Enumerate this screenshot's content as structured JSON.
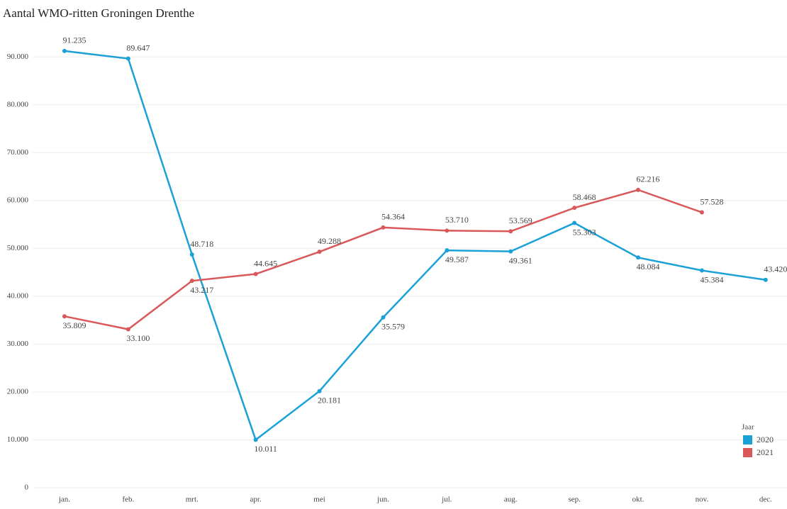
{
  "chart_data": {
    "type": "line",
    "title": "Aantal WMO-ritten Groningen Drenthe",
    "categories": [
      "jan.",
      "feb.",
      "mrt.",
      "apr.",
      "mei",
      "jun.",
      "jul.",
      "aug.",
      "sep.",
      "okt.",
      "nov.",
      "dec."
    ],
    "series": [
      {
        "name": "2020",
        "color": "#1ba1d8",
        "values": [
          91235,
          89647,
          48718,
          10011,
          20181,
          35579,
          49587,
          49361,
          55303,
          48084,
          45384,
          43420
        ],
        "value_labels": [
          "91.235",
          "89.647",
          "48.718",
          "10.011",
          "20.181",
          "35.579",
          "49.587",
          "49.361",
          "55.303",
          "48.084",
          "45.384",
          "43.420"
        ]
      },
      {
        "name": "2021",
        "color": "#d9585a",
        "values": [
          35809,
          33100,
          43217,
          44645,
          49288,
          54364,
          53710,
          53569,
          58468,
          62216,
          57528,
          null
        ],
        "value_labels": [
          "35.809",
          "33.100",
          "43.217",
          "44.645",
          "49.288",
          "54.364",
          "53.710",
          "53.569",
          "58.468",
          "62.216",
          "57.528",
          null
        ]
      }
    ],
    "ylim": [
      0,
      93000
    ],
    "yticks": [
      0,
      {
        "value": 10000,
        "label": "10.000"
      },
      {
        "value": 20000,
        "label": "20.000"
      },
      {
        "value": 30000,
        "label": "30.000"
      },
      {
        "value": 40000,
        "label": "40.000"
      },
      {
        "value": 50000,
        "label": "50.000"
      },
      {
        "value": 60000,
        "label": "60.000"
      },
      {
        "value": 70000,
        "label": "70.000"
      },
      {
        "value": 80000,
        "label": "80.000"
      },
      {
        "value": 90000,
        "label": "90.000"
      }
    ],
    "grid": true,
    "legend_title": "Jaar",
    "legend_position": "lower right"
  }
}
